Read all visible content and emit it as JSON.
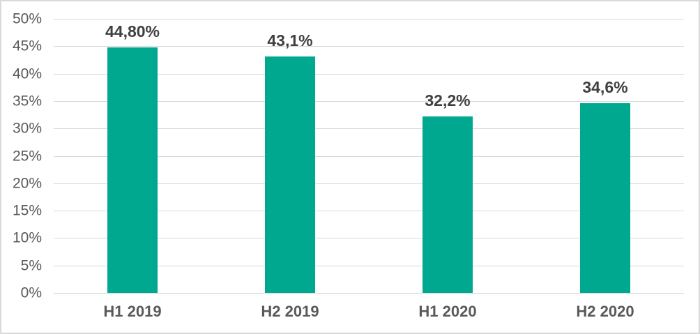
{
  "chart_data": {
    "type": "bar",
    "title": "",
    "xlabel": "",
    "ylabel": "",
    "categories": [
      "H1 2019",
      "H2 2019",
      "H1 2020",
      "H2 2020"
    ],
    "values": [
      44.8,
      43.1,
      32.2,
      34.6
    ],
    "data_labels": [
      "44,80%",
      "43,1%",
      "32,2%",
      "34,6%"
    ],
    "ylim": [
      0,
      50
    ],
    "ytick_step": 5,
    "ytick_labels": [
      "0%",
      "5%",
      "10%",
      "15%",
      "20%",
      "25%",
      "30%",
      "35%",
      "40%",
      "45%",
      "50%"
    ],
    "grid": true,
    "legend": false,
    "colors": {
      "bar": "#00a88f",
      "data_label_text": "#404040",
      "axis_text": "#595959",
      "gridline": "#d9d9d9",
      "frame_border": "#d9d9d9",
      "background": "#ffffff"
    }
  }
}
